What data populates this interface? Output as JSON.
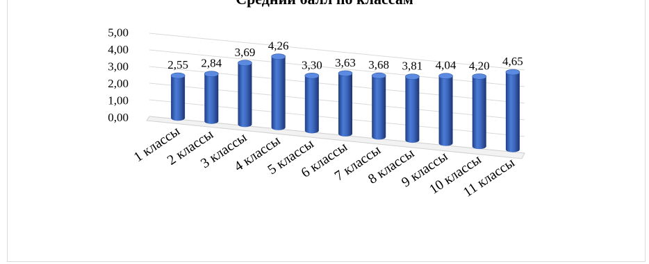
{
  "chart_data": {
    "type": "bar",
    "title": "Средний балл по классам",
    "categories": [
      "1 классы",
      "2 классы",
      "3 классы",
      "4 классы",
      "5 классы",
      "6 классы",
      "7 классы",
      "8 классы",
      "9 классы",
      "10 классы",
      "11 классы"
    ],
    "values": [
      2.55,
      2.84,
      3.69,
      4.26,
      3.3,
      3.63,
      3.68,
      3.81,
      4.04,
      4.2,
      4.65
    ],
    "value_labels": [
      "2,55",
      "2,84",
      "3,69",
      "4,26",
      "3,30",
      "3,63",
      "3,68",
      "3,81",
      "4,04",
      "4,20",
      "4,65"
    ],
    "y_ticks": [
      "0,00",
      "1,00",
      "2,00",
      "3,00",
      "4,00",
      "5,00"
    ],
    "ylim": [
      0,
      5
    ],
    "xlabel": "",
    "ylabel": "",
    "grid": true,
    "legend": "none",
    "style": "3d-cylinder",
    "series_color": "#4472c4"
  }
}
